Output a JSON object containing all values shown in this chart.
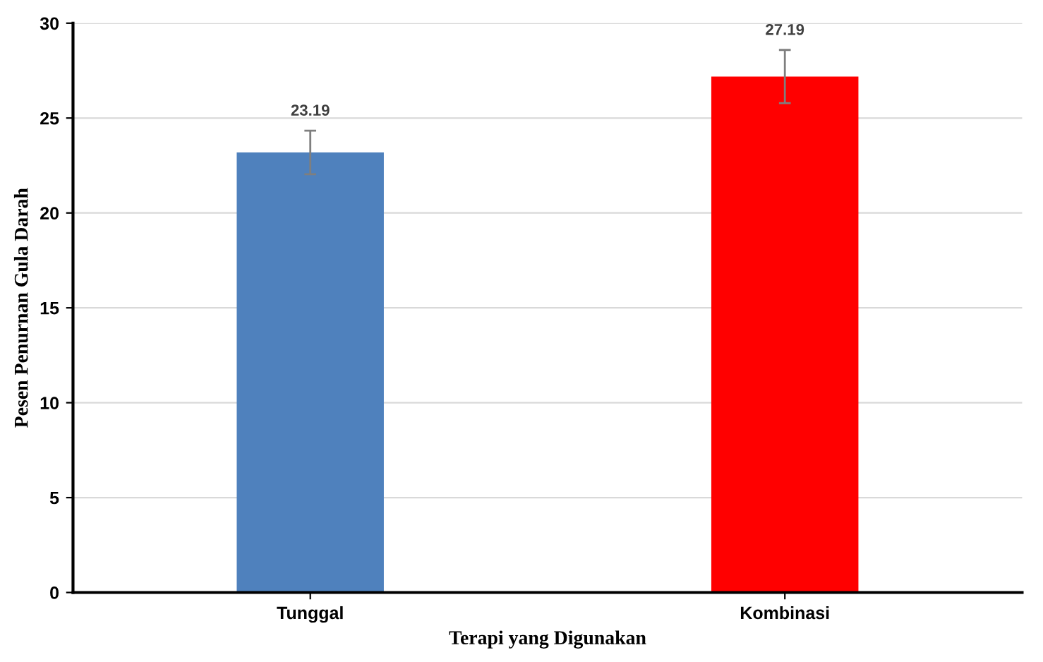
{
  "chart_data": {
    "type": "bar",
    "xlabel": "Terapi yang Digunakan",
    "ylabel": "Pesen Penurnan Gula Darah",
    "categories": [
      "Tunggal",
      "Kombinasi"
    ],
    "values": [
      23.19,
      27.19
    ],
    "colors": [
      "#4f81bd",
      "#ff0000"
    ],
    "errors": [
      1.15,
      1.4
    ],
    "data_labels": true,
    "ylim": [
      0,
      30
    ],
    "yticks": [
      0,
      5,
      10,
      15,
      20,
      25,
      30
    ],
    "grid": "y",
    "legend": false
  }
}
